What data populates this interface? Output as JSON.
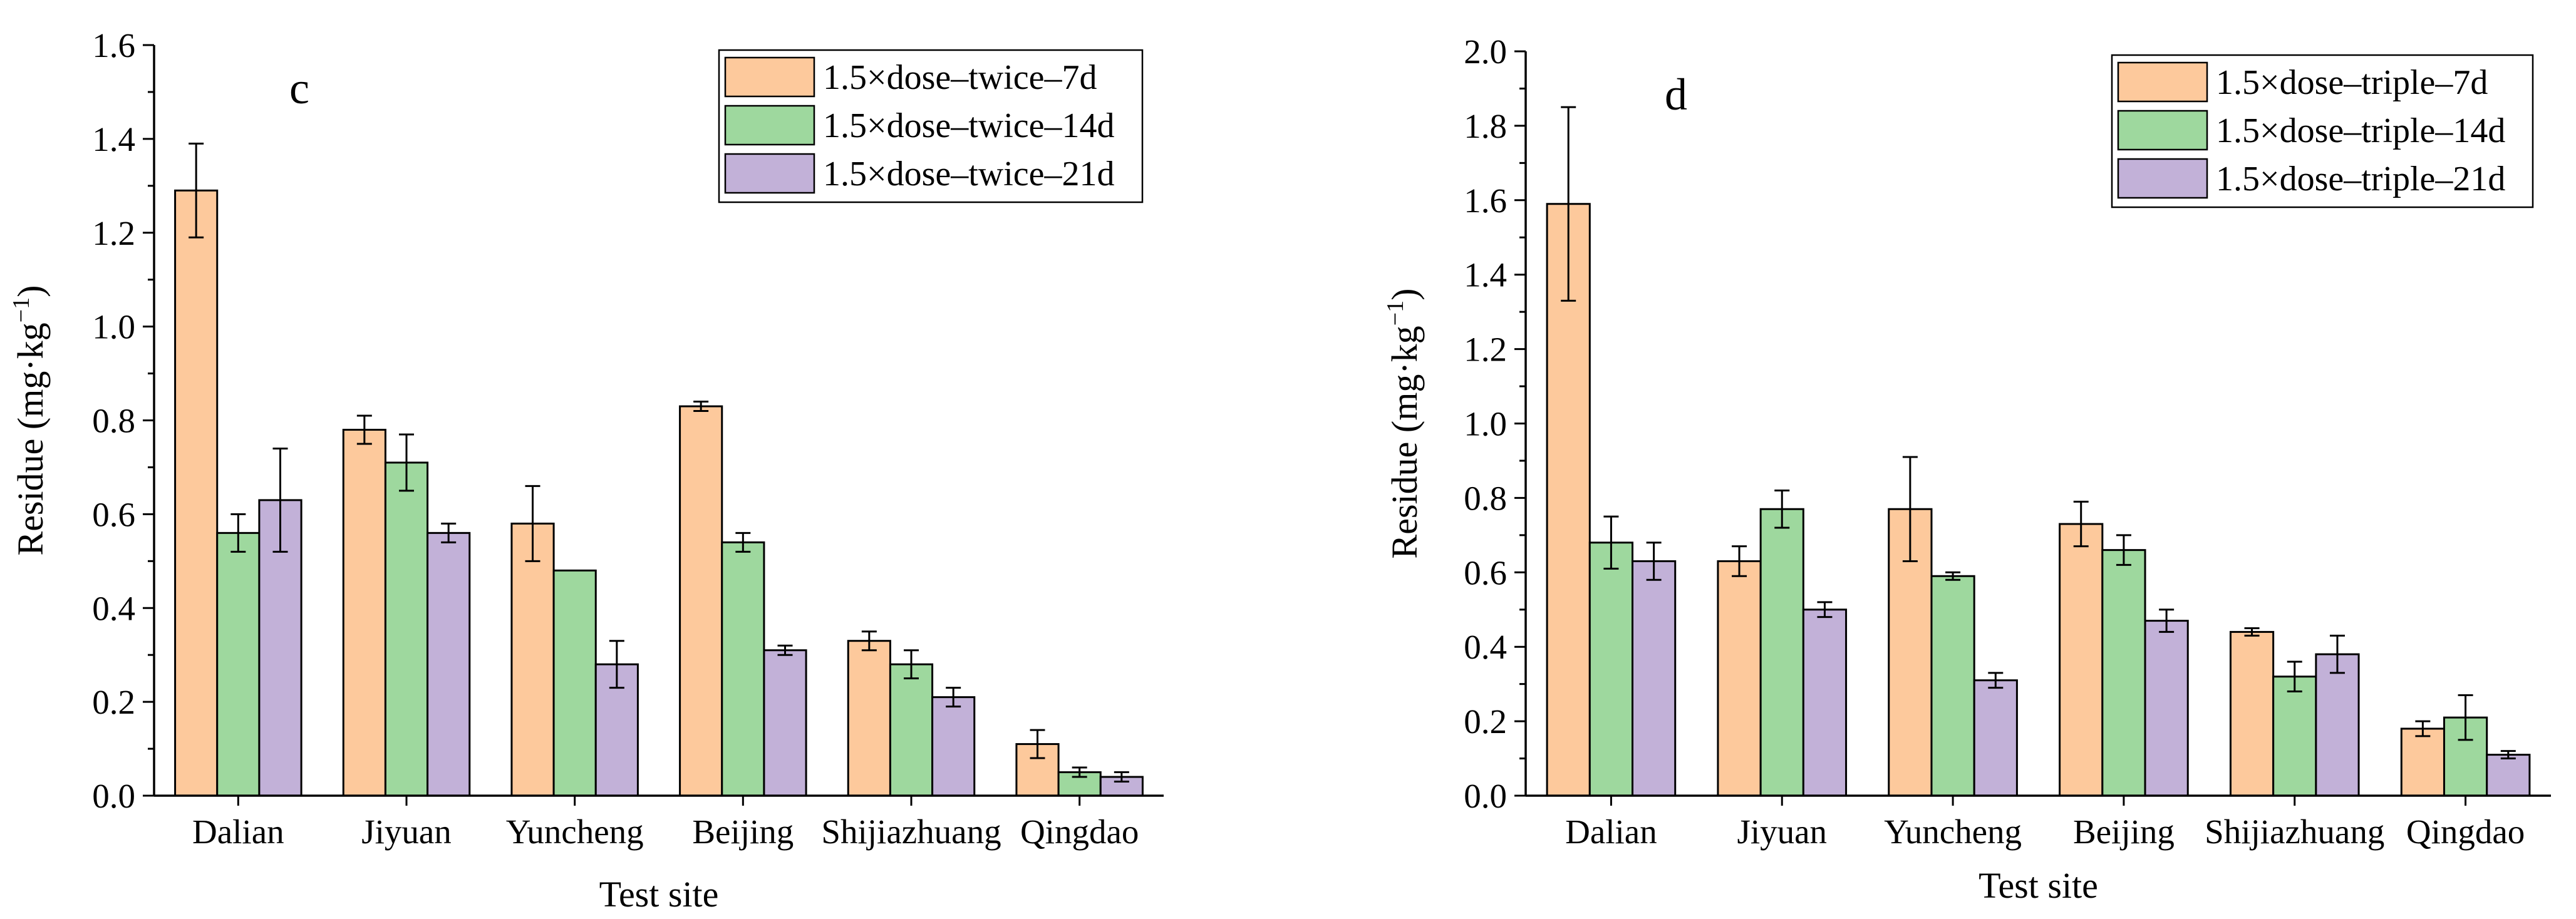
{
  "colors": {
    "orange": "#fdc99c",
    "green": "#9ed89e",
    "purple": "#c2b1d8",
    "stroke": "#000000"
  },
  "chart_data": [
    {
      "type": "bar",
      "panel_label": "c",
      "title": "",
      "xlabel": "Test site",
      "ylabel_main": "Residue (mg·kg",
      "ylabel_exp": "−1",
      "ylabel_close": ")",
      "ylim": [
        0,
        1.6
      ],
      "yticks": [
        0.0,
        0.2,
        0.4,
        0.6,
        0.8,
        1.0,
        1.2,
        1.4,
        1.6
      ],
      "ytick_labels": [
        "0.0",
        "0.2",
        "0.4",
        "0.6",
        "0.8",
        "1.0",
        "1.2",
        "1.4",
        "1.6"
      ],
      "legend_position": "top-right",
      "categories": [
        "Dalian",
        "Jiyuan",
        "Yuncheng",
        "Beijing",
        "Shijiazhuang",
        "Qingdao"
      ],
      "series": [
        {
          "name": "1.5×dose–twice–7d",
          "color": "#fdc99c",
          "values": [
            1.29,
            0.78,
            0.58,
            0.83,
            0.33,
            0.11
          ],
          "errors": [
            0.1,
            0.03,
            0.08,
            0.01,
            0.02,
            0.03
          ]
        },
        {
          "name": "1.5×dose–twice–14d",
          "color": "#9ed89e",
          "values": [
            0.56,
            0.71,
            0.48,
            0.54,
            0.28,
            0.05
          ],
          "errors": [
            0.04,
            0.06,
            0.0,
            0.02,
            0.03,
            0.01
          ]
        },
        {
          "name": "1.5×dose–twice–21d",
          "color": "#c2b1d8",
          "values": [
            0.63,
            0.56,
            0.28,
            0.31,
            0.21,
            0.04
          ],
          "errors": [
            0.11,
            0.02,
            0.05,
            0.01,
            0.02,
            0.01
          ]
        }
      ]
    },
    {
      "type": "bar",
      "panel_label": "d",
      "title": "",
      "xlabel": "Test site",
      "ylabel_main": "Residue (mg·kg",
      "ylabel_exp": "−1",
      "ylabel_close": ")",
      "ylim": [
        0,
        2.0
      ],
      "yticks": [
        0.0,
        0.2,
        0.4,
        0.6,
        0.8,
        1.0,
        1.2,
        1.4,
        1.6,
        1.8,
        2.0
      ],
      "ytick_labels": [
        "0.0",
        "0.2",
        "0.4",
        "0.6",
        "0.8",
        "1.0",
        "1.2",
        "1.4",
        "1.6",
        "1.8",
        "2.0"
      ],
      "legend_position": "top-right",
      "categories": [
        "Dalian",
        "Jiyuan",
        "Yuncheng",
        "Beijing",
        "Shijiazhuang",
        "Qingdao"
      ],
      "series": [
        {
          "name": "1.5×dose–triple–7d",
          "color": "#fdc99c",
          "values": [
            1.59,
            0.63,
            0.77,
            0.73,
            0.44,
            0.18
          ],
          "errors": [
            0.26,
            0.04,
            0.14,
            0.06,
            0.01,
            0.02
          ]
        },
        {
          "name": "1.5×dose–triple–14d",
          "color": "#9ed89e",
          "values": [
            0.68,
            0.77,
            0.59,
            0.66,
            0.32,
            0.21
          ],
          "errors": [
            0.07,
            0.05,
            0.01,
            0.04,
            0.04,
            0.06
          ]
        },
        {
          "name": "1.5×dose–triple–21d",
          "color": "#c2b1d8",
          "values": [
            0.63,
            0.5,
            0.31,
            0.47,
            0.38,
            0.11
          ],
          "errors": [
            0.05,
            0.02,
            0.02,
            0.03,
            0.05,
            0.01
          ]
        }
      ]
    }
  ]
}
